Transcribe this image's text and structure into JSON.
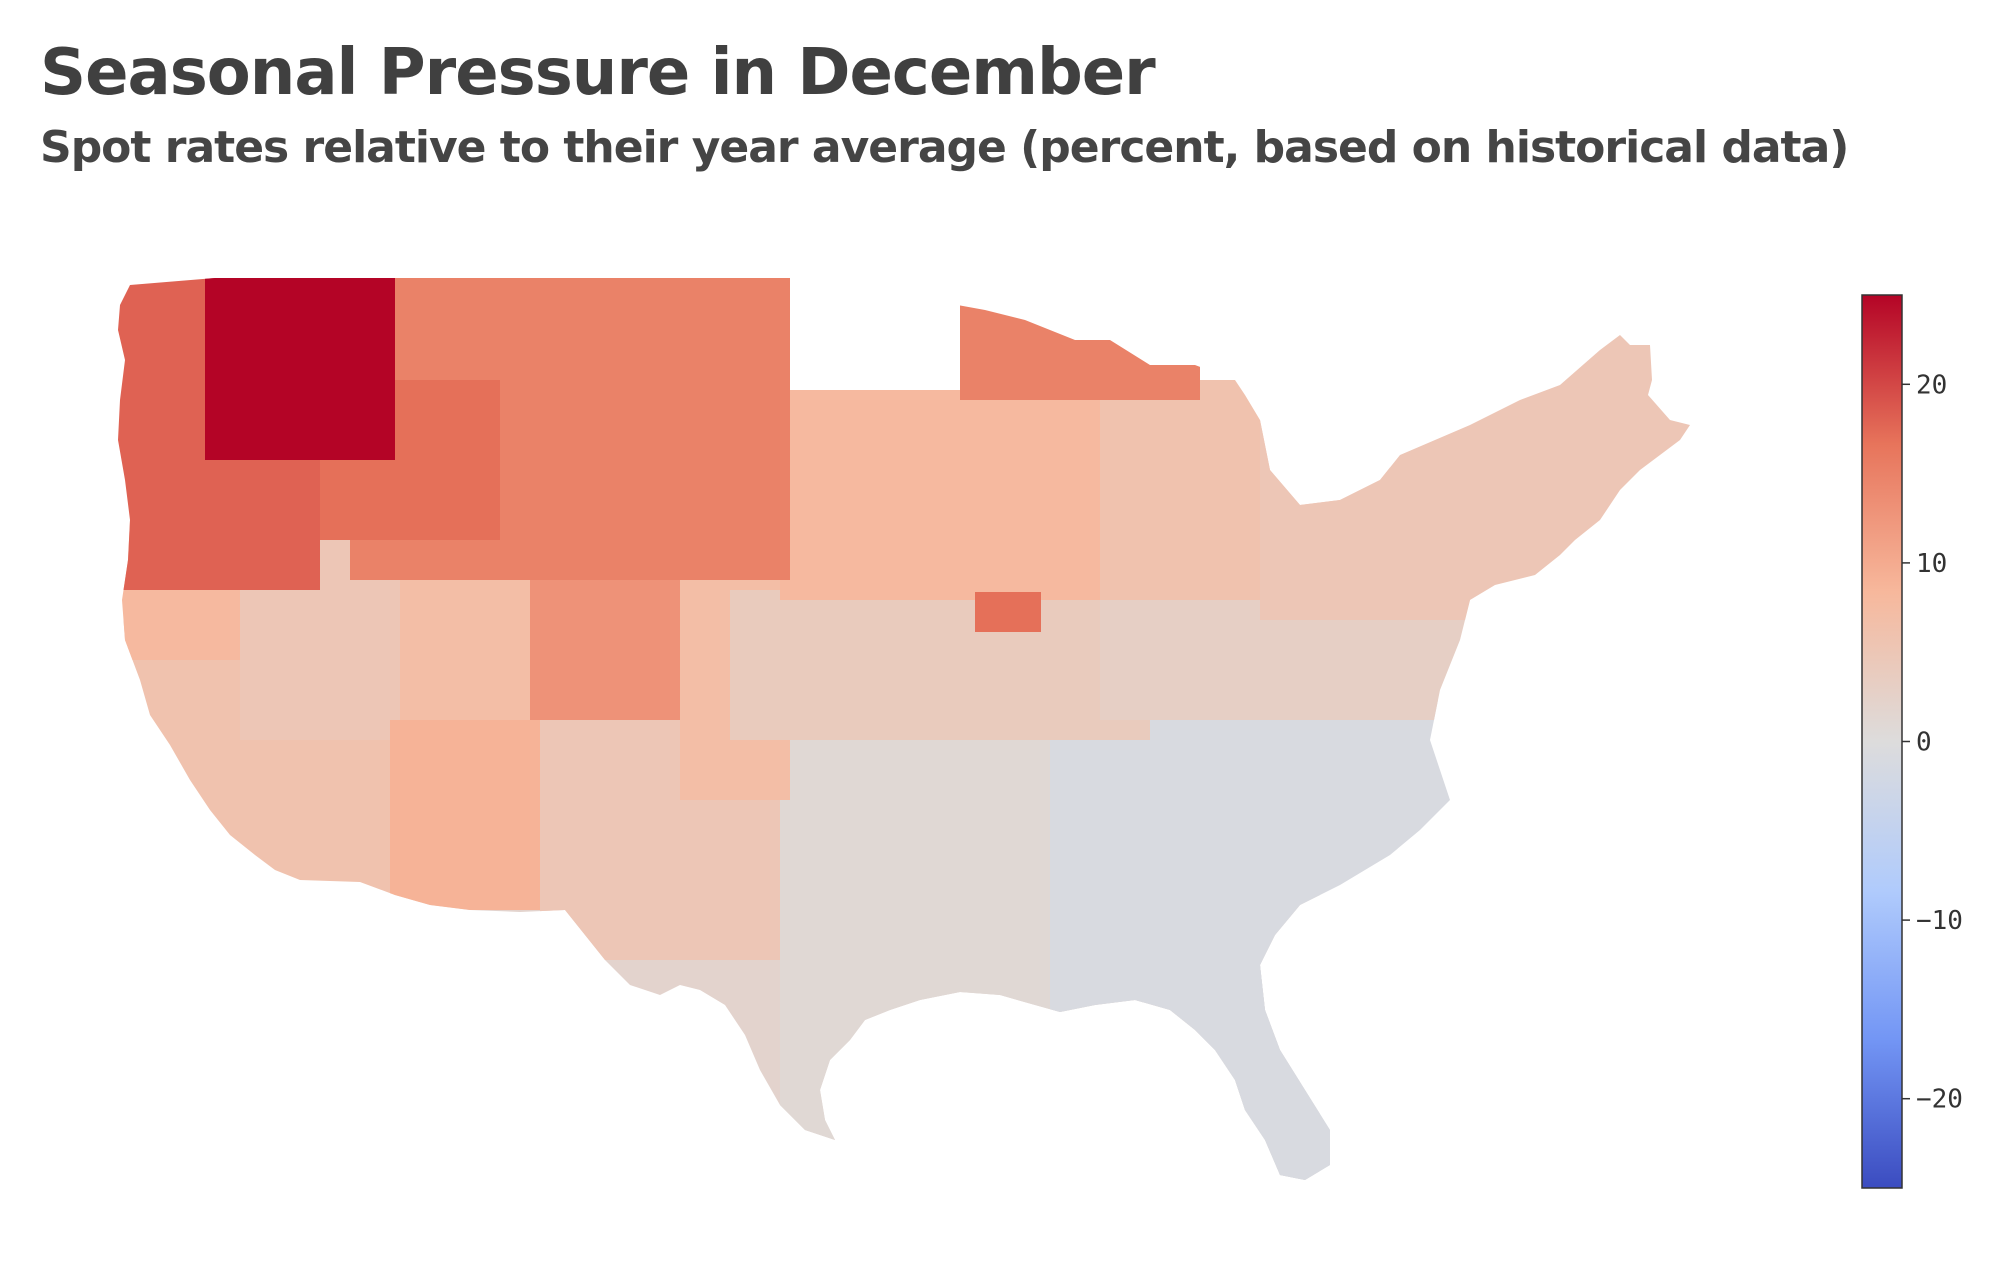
{
  "title": "Seasonal Pressure in December",
  "subtitle": "Spot rates relative to their year average (percent, based on historical data)",
  "map": {
    "region": "contiguous United States",
    "unit": "percent",
    "regions": [
      {
        "id": "nw-core",
        "value": 25
      },
      {
        "id": "pacific-nw",
        "value": 18
      },
      {
        "id": "idaho",
        "value": 17
      },
      {
        "id": "n-plains",
        "value": 15
      },
      {
        "id": "upper-mi",
        "value": 15
      },
      {
        "id": "iowa-hot",
        "value": 17
      },
      {
        "id": "n-california",
        "value": 8
      },
      {
        "id": "s-california",
        "value": 6
      },
      {
        "id": "nevada",
        "value": 5
      },
      {
        "id": "utah",
        "value": 7
      },
      {
        "id": "colorado",
        "value": 13
      },
      {
        "id": "arizona",
        "value": 9
      },
      {
        "id": "new-mexico",
        "value": 5
      },
      {
        "id": "s-plains",
        "value": 7
      },
      {
        "id": "central-plains",
        "value": 4
      },
      {
        "id": "midwest",
        "value": 8
      },
      {
        "id": "great-lakes",
        "value": 6
      },
      {
        "id": "northeast",
        "value": 5
      },
      {
        "id": "mid-atlantic",
        "value": 3
      },
      {
        "id": "texas",
        "value": 2
      },
      {
        "id": "south-central",
        "value": 1
      },
      {
        "id": "southeast",
        "value": -1
      },
      {
        "id": "florida",
        "value": -1
      }
    ]
  },
  "colorbar": {
    "min": -25,
    "max": 25,
    "ticks": [
      "20",
      "10",
      "0",
      "−10",
      "−20"
    ],
    "tick_values": [
      20,
      10,
      0,
      -10,
      -20
    ],
    "colormap": "coolwarm",
    "colors": [
      "#3b4cc0",
      "#7396f5",
      "#b0cbfc",
      "#dddcdc",
      "#f7b89c",
      "#e7745b",
      "#b40426"
    ]
  }
}
